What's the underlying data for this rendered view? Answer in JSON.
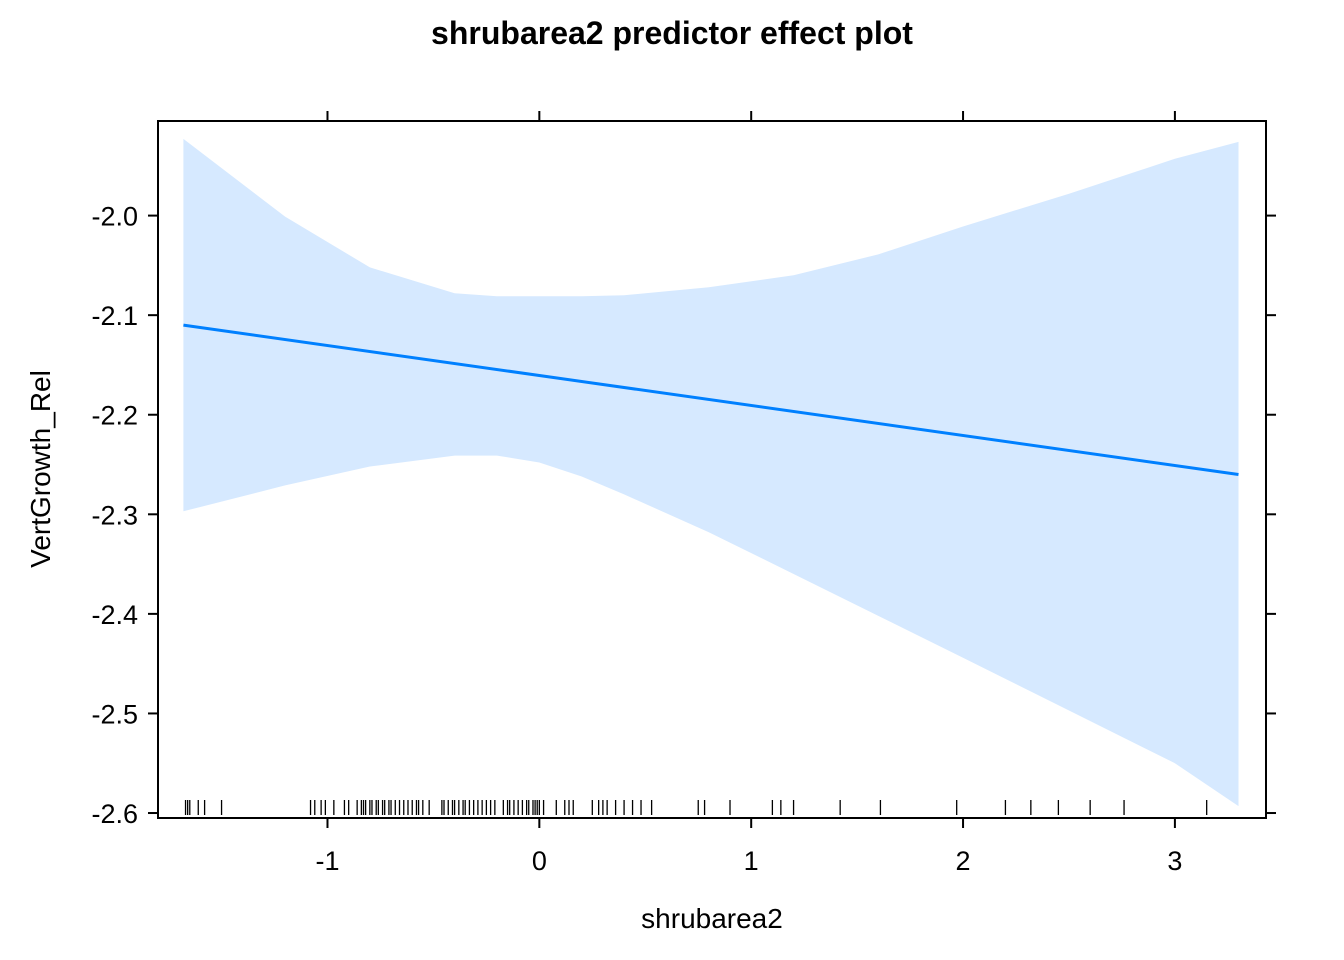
{
  "chart_data": {
    "type": "line",
    "title": "shrubarea2 predictor effect plot",
    "xlabel": "shrubarea2",
    "ylabel": "VertGrowth_Rel",
    "xlim": [
      -1.8,
      3.43
    ],
    "ylim": [
      -2.605,
      -1.905
    ],
    "x_ticks": [
      -1,
      0,
      1,
      2,
      3
    ],
    "x_tick_labels": [
      "-1",
      "0",
      "1",
      "2",
      "3"
    ],
    "y_ticks": [
      -2.0,
      -2.1,
      -2.2,
      -2.3,
      -2.4,
      -2.5,
      -2.6
    ],
    "y_tick_labels": [
      "-2.0",
      "-2.1",
      "-2.2",
      "-2.3",
      "-2.4",
      "-2.5",
      "-2.6"
    ],
    "grid": false,
    "colors": {
      "line": "#0080FF",
      "band": "#D6E9FF",
      "frame": "#000000",
      "rug": "#000000"
    },
    "series": [
      {
        "x": [
          -1.68,
          3.3
        ],
        "y": [
          -2.11,
          -2.26
        ]
      }
    ],
    "confidence_band": {
      "x": [
        -1.68,
        -1.2,
        -0.8,
        -0.4,
        -0.2,
        0.0,
        0.2,
        0.4,
        0.8,
        1.2,
        1.6,
        2.0,
        2.5,
        3.0,
        3.3
      ],
      "upper": [
        -1.923,
        -2.001,
        -2.052,
        -2.078,
        -2.081,
        -2.081,
        -2.081,
        -2.08,
        -2.072,
        -2.06,
        -2.039,
        -2.011,
        -1.978,
        -1.943,
        -1.926
      ],
      "lower": [
        -2.297,
        -2.271,
        -2.252,
        -2.241,
        -2.241,
        -2.248,
        -2.262,
        -2.28,
        -2.318,
        -2.36,
        -2.402,
        -2.444,
        -2.497,
        -2.55,
        -2.593
      ]
    },
    "rug_x": [
      -1.67,
      -1.66,
      -1.65,
      -1.61,
      -1.58,
      -1.5,
      -1.08,
      -1.06,
      -1.03,
      -1.01,
      -0.97,
      -0.92,
      -0.9,
      -0.86,
      -0.84,
      -0.83,
      -0.82,
      -0.8,
      -0.79,
      -0.77,
      -0.76,
      -0.74,
      -0.73,
      -0.71,
      -0.7,
      -0.68,
      -0.66,
      -0.64,
      -0.62,
      -0.6,
      -0.58,
      -0.57,
      -0.55,
      -0.52,
      -0.46,
      -0.45,
      -0.43,
      -0.41,
      -0.4,
      -0.38,
      -0.36,
      -0.35,
      -0.33,
      -0.31,
      -0.29,
      -0.27,
      -0.25,
      -0.23,
      -0.21,
      -0.17,
      -0.15,
      -0.14,
      -0.12,
      -0.1,
      -0.08,
      -0.06,
      -0.05,
      -0.03,
      -0.02,
      -0.01,
      0.0,
      0.02,
      0.08,
      0.12,
      0.14,
      0.16,
      0.25,
      0.28,
      0.3,
      0.32,
      0.36,
      0.4,
      0.44,
      0.48,
      0.53,
      0.75,
      0.78,
      0.9,
      1.1,
      1.14,
      1.2,
      1.42,
      1.61,
      1.97,
      2.2,
      2.32,
      2.45,
      2.6,
      2.76,
      3.15
    ]
  }
}
